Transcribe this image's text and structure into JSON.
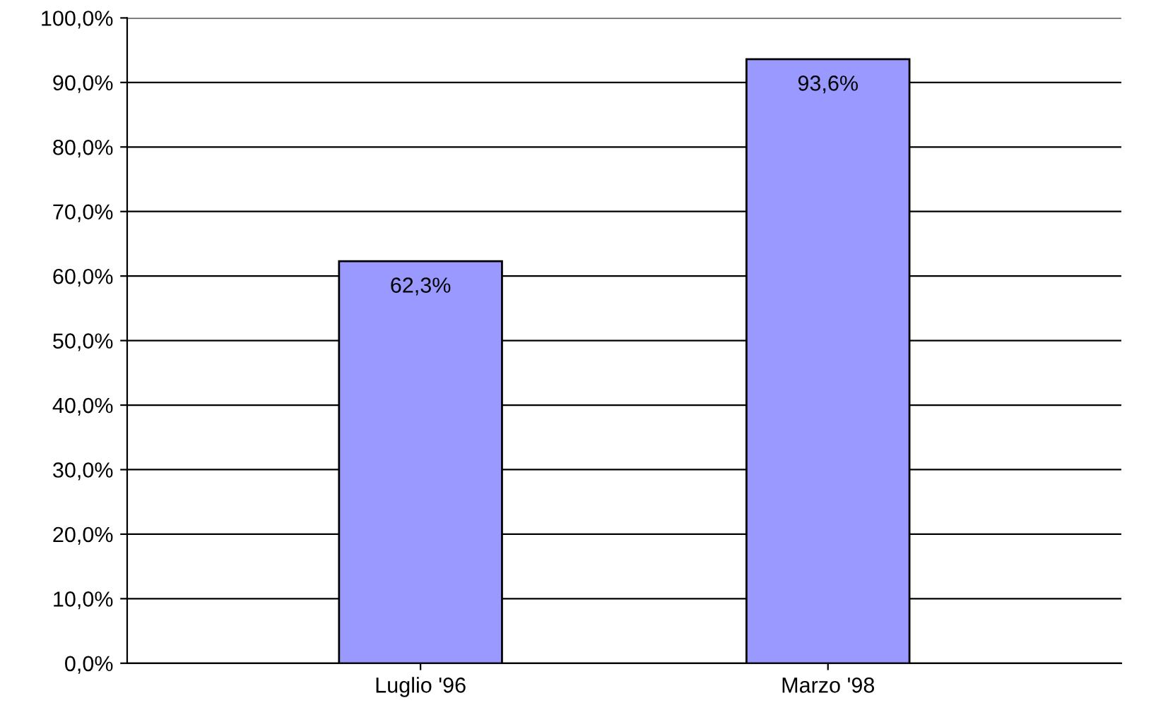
{
  "chart_data": {
    "type": "bar",
    "categories": [
      "Luglio '96",
      "Marzo '98"
    ],
    "values": [
      62.3,
      93.6
    ],
    "color": "#9999ff",
    "value_labels": [
      "62,3%",
      "93,6%"
    ],
    "ylim": [
      0,
      100
    ],
    "yticks": [
      {
        "value": 0,
        "label": "0,0%"
      },
      {
        "value": 10,
        "label": "10,0%"
      },
      {
        "value": 20,
        "label": "20,0%"
      },
      {
        "value": 30,
        "label": "30,0%"
      },
      {
        "value": 40,
        "label": "40,0%"
      },
      {
        "value": 50,
        "label": "50,0%"
      },
      {
        "value": 60,
        "label": "60,0%"
      },
      {
        "value": 70,
        "label": "70,0%"
      },
      {
        "value": 80,
        "label": "80,0%"
      },
      {
        "value": 90,
        "label": "90,0%"
      },
      {
        "value": 100,
        "label": "100,0%"
      }
    ],
    "grid": "y"
  }
}
